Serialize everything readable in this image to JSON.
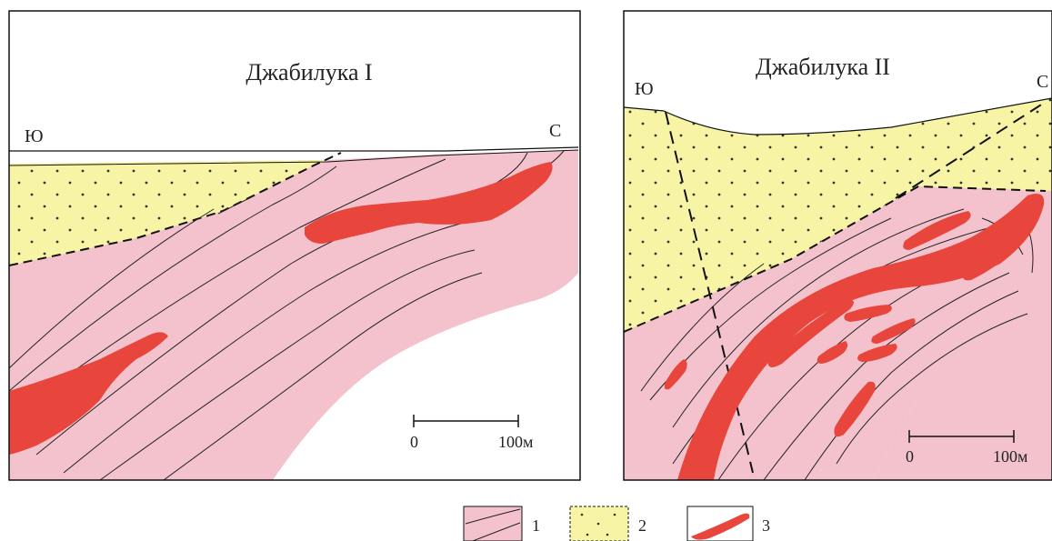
{
  "panel_left": {
    "title": "Джабилука I",
    "label_west": "Ю",
    "label_east": "С",
    "scale": {
      "start": "0",
      "end": "100м"
    }
  },
  "panel_right": {
    "title": "Джабилука II",
    "label_west": "Ю",
    "label_east": "С",
    "scale": {
      "start": "0",
      "end": "100м"
    }
  },
  "legend": {
    "items": [
      {
        "number": "1",
        "swatch": "schist"
      },
      {
        "number": "2",
        "swatch": "sandstone"
      },
      {
        "number": "3",
        "swatch": "ore"
      }
    ]
  },
  "colors": {
    "schist": "#f4c2cc",
    "sandstone": "#f7f4a6",
    "ore": "#e8453c",
    "line": "#222222"
  }
}
